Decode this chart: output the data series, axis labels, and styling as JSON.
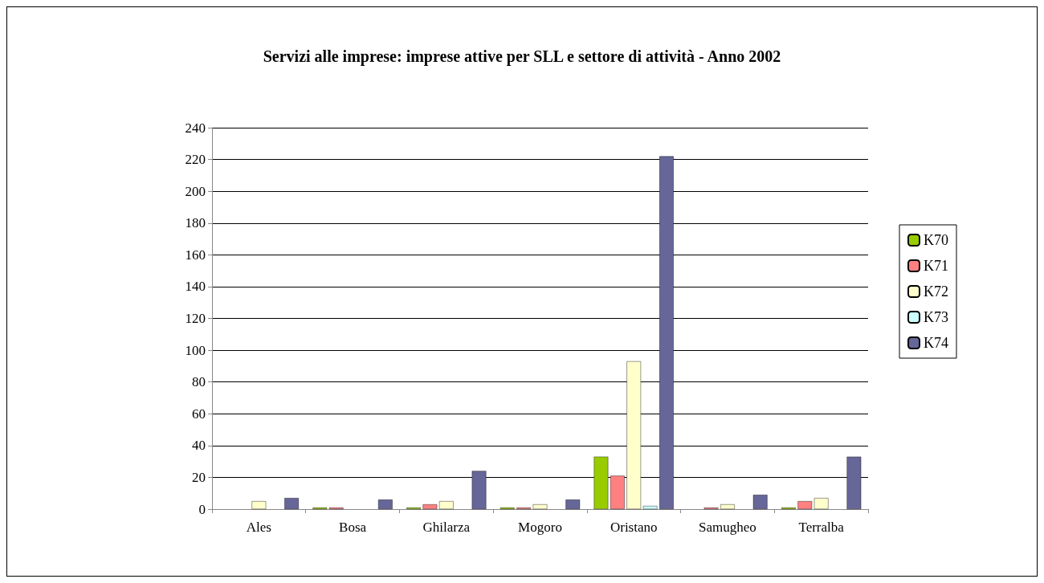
{
  "chart_data": {
    "type": "bar",
    "title": "Servizi alle imprese: imprese attive per SLL e settore di attività - Anno 2002",
    "categories": [
      "Ales",
      "Bosa",
      "Ghilarza",
      "Mogoro",
      "Oristano",
      "Samugheo",
      "Terralba"
    ],
    "series": [
      {
        "name": "K70",
        "color": "#99cc00",
        "values": [
          0,
          1,
          1,
          1,
          33,
          0,
          1
        ]
      },
      {
        "name": "K71",
        "color": "#ff8080",
        "values": [
          0,
          1,
          3,
          1,
          21,
          1,
          5
        ]
      },
      {
        "name": "K72",
        "color": "#ffffcc",
        "values": [
          5,
          0,
          5,
          3,
          93,
          3,
          7
        ]
      },
      {
        "name": "K73",
        "color": "#ccffff",
        "values": [
          0,
          0,
          0,
          0,
          2,
          0,
          0
        ]
      },
      {
        "name": "K74",
        "color": "#666699",
        "values": [
          7,
          6,
          24,
          6,
          222,
          9,
          33
        ]
      }
    ],
    "ylim": [
      0,
      240
    ],
    "yticks": [
      0,
      20,
      40,
      60,
      80,
      100,
      120,
      140,
      160,
      180,
      200,
      220,
      240
    ],
    "grid": "y",
    "legend": "right"
  }
}
